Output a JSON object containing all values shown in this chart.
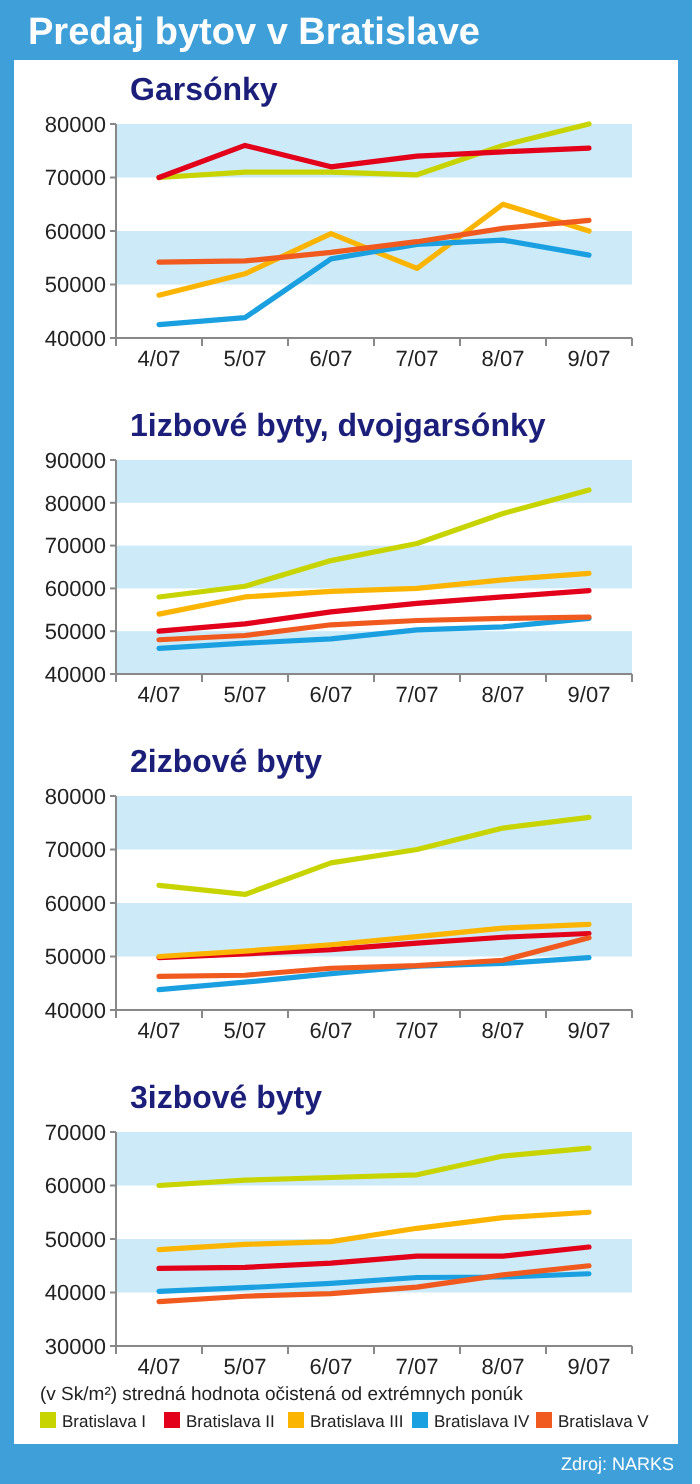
{
  "chart_data": [
    {
      "type": "line",
      "title": "Predaj bytov v Bratislave",
      "subtitle": "Garsónky",
      "categories": [
        "4/07",
        "5/07",
        "6/07",
        "7/07",
        "8/07",
        "9/07"
      ],
      "ylim": [
        40000,
        80000
      ],
      "yticks": [
        40000,
        50000,
        60000,
        70000,
        80000
      ],
      "grid": false,
      "marker": "none",
      "bands": [
        {
          "axis": "y",
          "from": 50000,
          "to": 60000,
          "color": "#cdeaf8"
        },
        {
          "axis": "y",
          "from": 70000,
          "to": 80000,
          "color": "#cdeaf8"
        }
      ],
      "series": [
        {
          "color": "#c8d400",
          "values": [
            70000,
            71000,
            71000,
            70500,
            76000,
            80000
          ]
        },
        {
          "color": "#e2001a",
          "values": [
            70000,
            76000,
            72000,
            74000,
            74800,
            75500
          ]
        },
        {
          "color": "#fbb400",
          "values": [
            48000,
            52000,
            59500,
            53000,
            65000,
            60000
          ]
        },
        {
          "color": "#1aa0e0",
          "values": [
            42500,
            43800,
            54800,
            57500,
            58300,
            55500
          ]
        },
        {
          "color": "#f05a1e",
          "values": [
            54200,
            54400,
            56000,
            58000,
            60500,
            62000
          ]
        }
      ]
    },
    {
      "type": "line",
      "title": "1izbové byty, dvojgarsónky",
      "categories": [
        "4/07",
        "5/07",
        "6/07",
        "7/07",
        "8/07",
        "9/07"
      ],
      "ylim": [
        40000,
        90000
      ],
      "yticks": [
        40000,
        50000,
        60000,
        70000,
        80000,
        90000
      ],
      "grid": false,
      "marker": "none",
      "bands": [
        {
          "axis": "y",
          "from": 40000,
          "to": 50000,
          "color": "#cdeaf8"
        },
        {
          "axis": "y",
          "from": 60000,
          "to": 70000,
          "color": "#cdeaf8"
        },
        {
          "axis": "y",
          "from": 80000,
          "to": 90000,
          "color": "#cdeaf8"
        }
      ],
      "series": [
        {
          "color": "#c8d400",
          "values": [
            58000,
            60500,
            66500,
            70500,
            77500,
            83000
          ]
        },
        {
          "color": "#e2001a",
          "values": [
            50000,
            51700,
            54500,
            56500,
            58000,
            59500
          ]
        },
        {
          "color": "#fbb400",
          "values": [
            54000,
            58000,
            59300,
            60000,
            62000,
            63500
          ]
        },
        {
          "color": "#1aa0e0",
          "values": [
            46000,
            47200,
            48200,
            50300,
            51000,
            53000
          ]
        },
        {
          "color": "#f05a1e",
          "values": [
            48000,
            49000,
            51500,
            52500,
            53000,
            53300
          ]
        }
      ]
    },
    {
      "type": "line",
      "title": "2izbové byty",
      "categories": [
        "4/07",
        "5/07",
        "6/07",
        "7/07",
        "8/07",
        "9/07"
      ],
      "ylim": [
        40000,
        80000
      ],
      "yticks": [
        40000,
        50000,
        60000,
        70000,
        80000
      ],
      "grid": false,
      "marker": "none",
      "bands": [
        {
          "axis": "y",
          "from": 50000,
          "to": 60000,
          "color": "#cdeaf8"
        },
        {
          "axis": "y",
          "from": 70000,
          "to": 80000,
          "color": "#cdeaf8"
        }
      ],
      "series": [
        {
          "color": "#c8d400",
          "values": [
            63300,
            61600,
            67500,
            70000,
            74000,
            76000
          ]
        },
        {
          "color": "#e2001a",
          "values": [
            49800,
            50500,
            51300,
            52500,
            53600,
            54300
          ]
        },
        {
          "color": "#fbb400",
          "values": [
            50000,
            51000,
            52200,
            53700,
            55300,
            56000
          ]
        },
        {
          "color": "#1aa0e0",
          "values": [
            43800,
            45200,
            46800,
            48200,
            48700,
            49800
          ]
        },
        {
          "color": "#f05a1e",
          "values": [
            46300,
            46500,
            47800,
            48300,
            49300,
            53500
          ]
        }
      ]
    },
    {
      "type": "line",
      "title": "3izbové byty",
      "categories": [
        "4/07",
        "5/07",
        "6/07",
        "7/07",
        "8/07",
        "9/07"
      ],
      "ylim": [
        30000,
        70000
      ],
      "yticks": [
        30000,
        40000,
        50000,
        60000,
        70000
      ],
      "grid": false,
      "marker": "none",
      "legend": "bottom",
      "bands": [
        {
          "axis": "y",
          "from": 40000,
          "to": 50000,
          "color": "#cdeaf8"
        },
        {
          "axis": "y",
          "from": 60000,
          "to": 70000,
          "color": "#cdeaf8"
        }
      ],
      "annotations": [
        "(v Sk/m²) stredná hodnota očistená od extrémnych ponúk",
        "Zdroj: NARKS"
      ],
      "series": [
        {
          "name": "Bratislava I",
          "color": "#c8d400",
          "values": [
            60000,
            61000,
            61500,
            62000,
            65500,
            67000
          ]
        },
        {
          "name": "Bratislava II",
          "color": "#e2001a",
          "values": [
            44500,
            44700,
            45500,
            46800,
            46800,
            48500
          ]
        },
        {
          "name": "Bratislava III",
          "color": "#fbb400",
          "values": [
            48000,
            49000,
            49500,
            52000,
            54000,
            55000
          ]
        },
        {
          "name": "Bratislava IV",
          "color": "#1aa0e0",
          "values": [
            40200,
            40900,
            41700,
            42800,
            42900,
            43500
          ]
        },
        {
          "name": "Bratislava V",
          "color": "#f05a1e",
          "values": [
            38300,
            39300,
            39800,
            41000,
            43300,
            45000
          ]
        }
      ]
    }
  ]
}
